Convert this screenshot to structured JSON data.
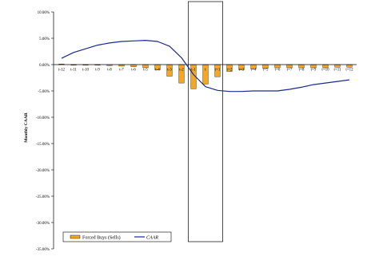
{
  "chart_data": {
    "type": "bar",
    "categories": [
      "t-12",
      "t-11",
      "t-10",
      "t-9",
      "t-8",
      "t-7",
      "t-6",
      "t-5",
      "t-4",
      "t-3",
      "t-2",
      "t-1",
      "t",
      "t+1",
      "t+2",
      "t+3",
      "t+4",
      "t+5",
      "t+6",
      "t+7",
      "t+8",
      "t+9",
      "t+10",
      "t+11",
      "t+12"
    ],
    "series": [
      {
        "name": "Forced Buys (Sells)",
        "kind": "bar",
        "color": "#f5a623",
        "values": [
          0.1,
          -0.1,
          -0.1,
          -0.1,
          -0.2,
          -0.3,
          -0.4,
          -0.6,
          -1.0,
          -2.2,
          -3.5,
          -4.6,
          -3.7,
          -2.3,
          -1.3,
          -1.0,
          -0.8,
          -0.7,
          -0.6,
          -0.6,
          -0.6,
          -0.6,
          -0.6,
          -0.5,
          -0.5
        ]
      },
      {
        "name": "CAAR",
        "kind": "line",
        "color": "#1a2a8c",
        "values": [
          1.2,
          2.3,
          3.0,
          3.7,
          4.1,
          4.4,
          4.5,
          4.6,
          4.4,
          3.5,
          1.3,
          -1.9,
          -4.2,
          -4.9,
          -5.1,
          -5.1,
          -5.0,
          -5.0,
          -5.0,
          -4.7,
          -4.3,
          -3.8,
          -3.5,
          -3.2,
          -2.9
        ]
      }
    ],
    "ylabel": "Monthly CAAR",
    "ylim": [
      -35,
      10
    ],
    "yticks": [
      "10.00%",
      "5.00%",
      "0.00%",
      "-5.00%",
      "-10.00%",
      "-15.00%",
      "-20.00%",
      "-25.00%",
      "-30.00%",
      "-35.00%"
    ],
    "ytick_values": [
      10,
      5,
      0,
      -5,
      -10,
      -15,
      -20,
      -25,
      -30,
      -35
    ],
    "highlight_range": [
      "t-1",
      "t+1"
    ],
    "legend_position": "bottom-left",
    "grid": false
  }
}
